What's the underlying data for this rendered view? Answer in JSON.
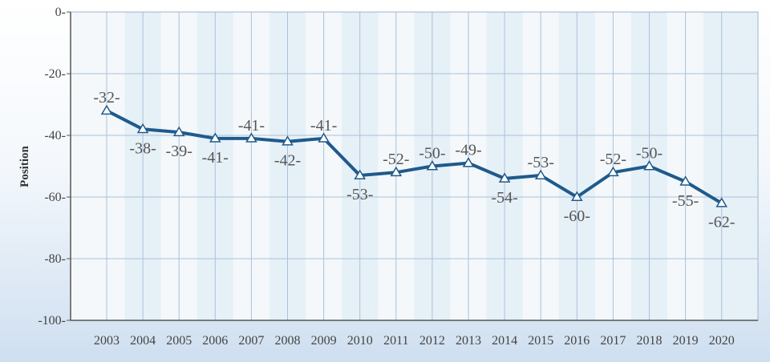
{
  "chart_data": {
    "type": "line",
    "ylabel": "Position",
    "ylim": [
      -100,
      0
    ],
    "yticks": [
      0,
      -20,
      -40,
      -60,
      -80,
      -100
    ],
    "grid": true,
    "categories": [
      "2003",
      "2004",
      "2005",
      "2006",
      "2007",
      "2008",
      "2009",
      "2010",
      "2011",
      "2012",
      "2013",
      "2014",
      "2015",
      "2016",
      "2017",
      "2018",
      "2019",
      "2020"
    ],
    "series": [
      {
        "values": [
          -32,
          -38,
          -39,
          -41,
          -41,
          -42,
          -41,
          -53,
          -52,
          -50,
          -49,
          -54,
          -53,
          -60,
          -52,
          -50,
          -55,
          -62
        ],
        "data_labels": [
          "-32-",
          "-38-",
          "-39-",
          "-41-",
          "-41-",
          "-42-",
          "-41-",
          "-53-",
          "-52-",
          "-50-",
          "-49-",
          "-54-",
          "-53-",
          "-60-",
          "-52-",
          "-50-",
          "-55-",
          "-62-"
        ],
        "label_side": [
          "above",
          "below",
          "below",
          "below",
          "above",
          "below",
          "above",
          "below",
          "above",
          "above",
          "above",
          "below",
          "above",
          "below",
          "above",
          "above",
          "below",
          "below"
        ],
        "color": "#1f5a8c",
        "marker": "triangle"
      }
    ],
    "colors": {
      "plot_bg": "#e6f0f7",
      "band_light": "#ffffff",
      "grid": "#a9c2d9",
      "axis": "#555555"
    }
  }
}
